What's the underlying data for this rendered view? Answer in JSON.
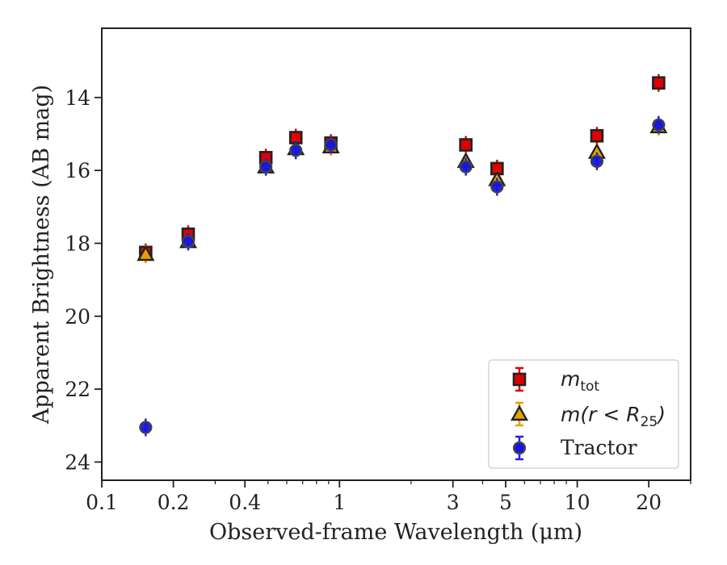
{
  "chart_data": {
    "type": "scatter",
    "title": "",
    "xlabel": "Observed-frame Wavelength (μm)",
    "ylabel": "Apparent Brightness (AB mag)",
    "xscale": "log",
    "xlim": [
      0.1,
      30
    ],
    "ylim": [
      24.5,
      12.1
    ],
    "y_inverted": true,
    "x_ticks": [
      0.1,
      0.2,
      0.4,
      1,
      3,
      5,
      10,
      20
    ],
    "x_tick_labels": [
      "0.1",
      "0.2",
      "0.4",
      "1",
      "3",
      "5",
      "10",
      "20"
    ],
    "y_ticks": [
      14,
      16,
      18,
      20,
      22,
      24
    ],
    "y_tick_labels": [
      "14",
      "16",
      "18",
      "20",
      "22",
      "24"
    ],
    "grid": false,
    "legend_position": "lower-right",
    "series": [
      {
        "name": "m_tot",
        "marker": "square",
        "color": "#e00000",
        "edge": "#222222",
        "errorbar_color": "#e00000",
        "x": [
          0.153,
          0.231,
          0.49,
          0.655,
          0.92,
          3.4,
          4.6,
          12.1,
          22.0
        ],
        "y": [
          18.25,
          17.75,
          15.65,
          15.1,
          15.25,
          15.3,
          15.95,
          15.05,
          13.6
        ]
      },
      {
        "name": "m(r < R25)",
        "marker": "triangle",
        "color": "#e8a000",
        "edge": "#222222",
        "errorbar_color": "#e8a000",
        "x": [
          0.153,
          0.231,
          0.49,
          0.655,
          0.92,
          3.4,
          4.6,
          12.1,
          22.0
        ],
        "y": [
          18.3,
          17.95,
          15.9,
          15.4,
          15.35,
          15.75,
          16.25,
          15.5,
          14.8
        ]
      },
      {
        "name": "Tractor",
        "marker": "circle",
        "color": "#1515e0",
        "edge": "#444444",
        "errorbar_color": "#2020e8",
        "x": [
          0.153,
          0.231,
          0.49,
          0.655,
          0.92,
          3.4,
          4.6,
          12.1,
          22.0
        ],
        "y": [
          23.05,
          17.95,
          15.9,
          15.45,
          15.3,
          15.9,
          16.45,
          15.75,
          14.75
        ]
      }
    ]
  },
  "legend": {
    "tot_base": "m",
    "tot_sub": "tot",
    "r25_base": "m(r < R",
    "r25_sub": "25",
    "r25_close": ")",
    "tractor": "Tractor"
  }
}
